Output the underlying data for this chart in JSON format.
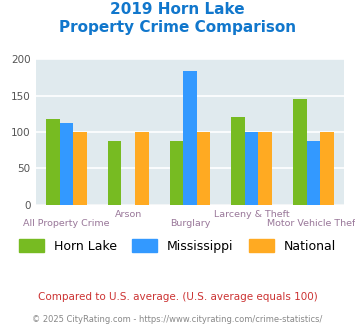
{
  "title_line1": "2019 Horn Lake",
  "title_line2": "Property Crime Comparison",
  "categories": [
    "All Property Crime",
    "Arson",
    "Burglary",
    "Larceny & Theft",
    "Motor Vehicle Theft"
  ],
  "series": {
    "Horn Lake": [
      118,
      87,
      87,
      121,
      145
    ],
    "Mississippi": [
      113,
      null,
      184,
      100,
      87
    ],
    "National": [
      100,
      100,
      100,
      100,
      100
    ]
  },
  "colors": {
    "Horn Lake": "#77bb22",
    "Mississippi": "#3399ff",
    "National": "#ffaa22"
  },
  "ylim": [
    0,
    200
  ],
  "yticks": [
    0,
    50,
    100,
    150,
    200
  ],
  "bar_width": 0.22,
  "chart_bg": "#e0eaee",
  "grid_color": "#ffffff",
  "title_color": "#1177cc",
  "xlabel_color": "#997799",
  "legend_fontsize": 9,
  "footnote1": "Compared to U.S. average. (U.S. average equals 100)",
  "footnote2": "© 2025 CityRating.com - https://www.cityrating.com/crime-statistics/",
  "footnote1_color": "#cc3333",
  "footnote2_color": "#888888",
  "upper_labels": [
    "",
    "Arson",
    "",
    "Larceny & Theft",
    ""
  ],
  "lower_labels": [
    "All Property Crime",
    "",
    "Burglary",
    "",
    "Motor Vehicle Theft"
  ]
}
